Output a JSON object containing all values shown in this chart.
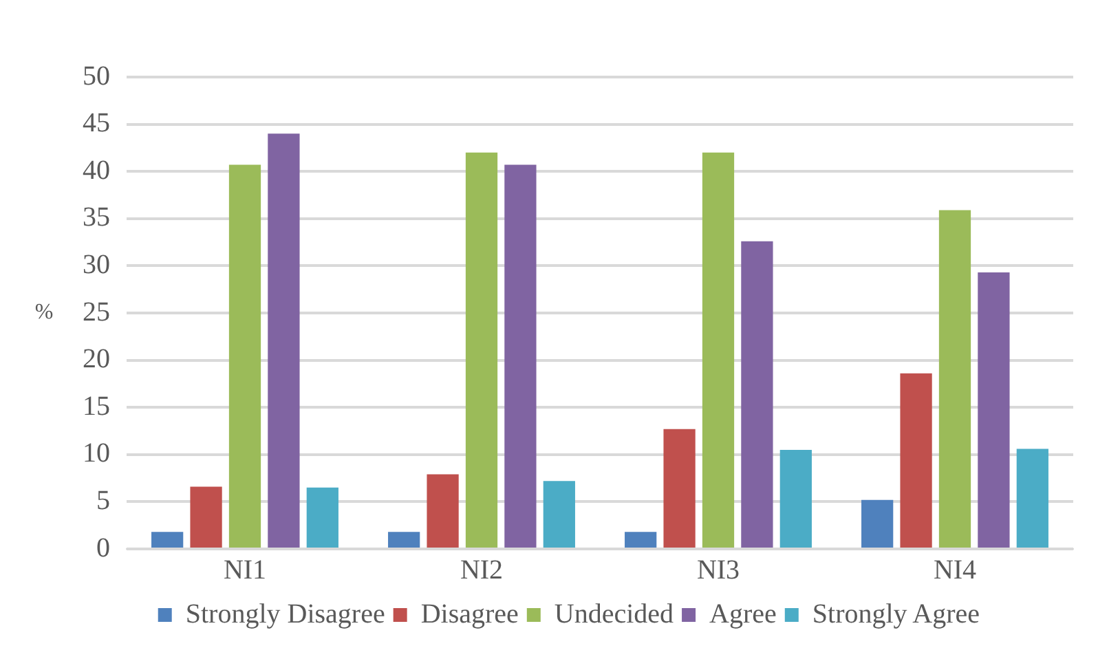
{
  "chart_data": {
    "type": "bar",
    "ylabel": "%",
    "categories": [
      "NI1",
      "NI2",
      "NI3",
      "NI4"
    ],
    "series": [
      {
        "name": "Strongly Disagree",
        "color": "#4f81bd",
        "values": [
          1.8,
          1.8,
          1.8,
          5.2
        ]
      },
      {
        "name": "Disagree",
        "color": "#c0504d",
        "values": [
          6.6,
          7.9,
          12.7,
          18.6
        ]
      },
      {
        "name": "Undecided",
        "color": "#9bbb59",
        "values": [
          40.7,
          42.0,
          42.0,
          35.9
        ]
      },
      {
        "name": "Agree",
        "color": "#8064a2",
        "values": [
          44.0,
          40.7,
          32.6,
          29.3
        ]
      },
      {
        "name": "Strongly Agree",
        "color": "#4bacc6",
        "values": [
          6.5,
          7.2,
          10.5,
          10.6
        ]
      }
    ],
    "ylim": [
      0,
      50
    ],
    "yticks": [
      0,
      5,
      10,
      15,
      20,
      25,
      30,
      35,
      40,
      45,
      50
    ],
    "grid": "y",
    "legend": "bottom"
  }
}
